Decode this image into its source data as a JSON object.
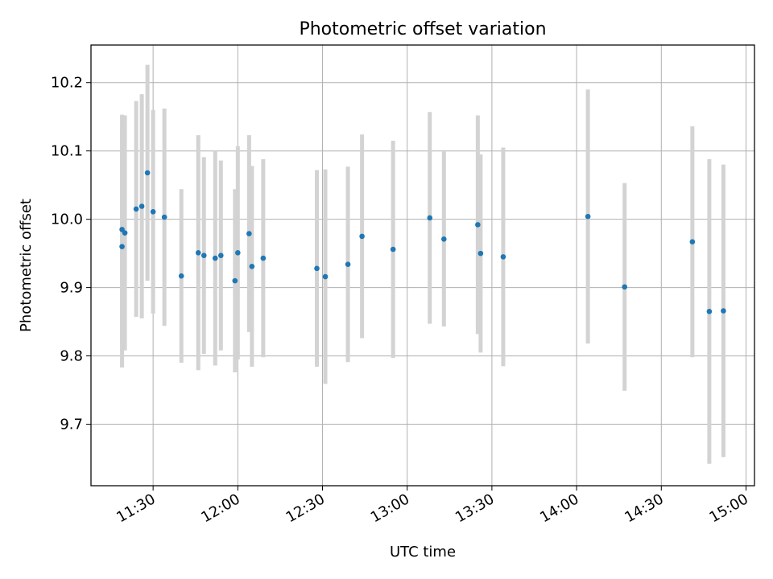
{
  "chart_data": {
    "type": "scatter",
    "title": "Photometric offset variation",
    "xlabel": "UTC time",
    "ylabel": "Photometric offset",
    "grid": true,
    "x_ticks": [
      "11:30",
      "12:00",
      "12:30",
      "13:00",
      "13:30",
      "14:00",
      "14:30",
      "15:00"
    ],
    "xlim": [
      "11:08",
      "15:03"
    ],
    "y_ticks": [
      "9.7",
      "9.8",
      "9.9",
      "10.0",
      "10.1",
      "10.2"
    ],
    "ylim": [
      9.61,
      10.255
    ],
    "colors": {
      "points": "#1f77b4",
      "error_bars": "#d3d3d3",
      "grid": "#b0b0b0"
    },
    "series": [
      {
        "x": [
          "11:19",
          "11:19",
          "11:20",
          "11:24",
          "11:26",
          "11:28",
          "11:30",
          "11:34",
          "11:40",
          "11:46",
          "11:48",
          "11:52",
          "11:54",
          "11:59",
          "12:00",
          "12:04",
          "12:05",
          "12:09",
          "12:28",
          "12:31",
          "12:39",
          "12:44",
          "12:55",
          "13:08",
          "13:13",
          "13:25",
          "13:26",
          "13:34",
          "14:04",
          "14:17",
          "14:41",
          "14:47",
          "14:52"
        ],
        "y": [
          9.96,
          9.985,
          9.98,
          10.015,
          10.019,
          10.068,
          10.011,
          10.003,
          9.917,
          9.951,
          9.947,
          9.943,
          9.947,
          9.91,
          9.951,
          9.979,
          9.931,
          9.943,
          9.928,
          9.916,
          9.934,
          9.975,
          9.956,
          10.002,
          9.971,
          9.992,
          9.95,
          9.945,
          10.004,
          9.901,
          9.967,
          9.865,
          9.866
        ],
        "error": [
          0.177,
          0.168,
          0.172,
          0.158,
          0.164,
          0.158,
          0.149,
          0.159,
          0.127,
          0.172,
          0.144,
          0.157,
          0.139,
          0.134,
          0.156,
          0.144,
          0.147,
          0.145,
          0.144,
          0.157,
          0.143,
          0.149,
          0.159,
          0.155,
          0.128,
          0.16,
          0.145,
          0.16,
          0.186,
          0.152,
          0.169,
          0.223,
          0.214
        ]
      }
    ]
  }
}
